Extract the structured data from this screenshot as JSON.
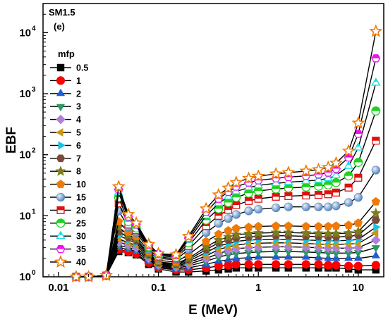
{
  "chart_data": {
    "type": "line",
    "xlabel": "E (MeV)",
    "ylabel": "EBF",
    "xscale": "log",
    "yscale": "log",
    "xlim": [
      0.007,
      18
    ],
    "ylim": [
      1,
      30000
    ],
    "xticks": [
      0.01,
      0.1,
      1,
      10
    ],
    "xtick_labels": [
      "0.01",
      "0.1",
      "1",
      "10"
    ],
    "yticks": [
      1,
      10,
      100,
      1000,
      10000
    ],
    "ytick_mantissa": "10",
    "ytick_exponents": [
      "0",
      "1",
      "2",
      "3",
      "4"
    ],
    "annotations": [
      "SM1.5",
      "(e)"
    ],
    "legend_title": "mfp",
    "legend_position": "left",
    "grid": false,
    "x": [
      0.015,
      0.02,
      0.03,
      0.04,
      0.05,
      0.06,
      0.08,
      0.1,
      0.15,
      0.2,
      0.3,
      0.4,
      0.5,
      0.6,
      0.8,
      1,
      1.5,
      2,
      3,
      4,
      5,
      6,
      8,
      10,
      15
    ],
    "series": [
      {
        "name": "0.5",
        "marker": "square",
        "color": "#000000",
        "values": [
          1.0,
          1.0,
          1.05,
          2.6,
          2.5,
          2.3,
          1.6,
          1.35,
          1.2,
          1.2,
          1.25,
          1.3,
          1.35,
          1.4,
          1.4,
          1.4,
          1.4,
          1.4,
          1.4,
          1.4,
          1.4,
          1.4,
          1.35,
          1.3,
          1.3
        ]
      },
      {
        "name": "1",
        "marker": "circle",
        "color": "#ff0000",
        "values": [
          1.0,
          1.0,
          1.05,
          2.8,
          2.6,
          2.4,
          1.7,
          1.4,
          1.3,
          1.3,
          1.4,
          1.5,
          1.55,
          1.6,
          1.6,
          1.6,
          1.6,
          1.6,
          1.6,
          1.6,
          1.55,
          1.55,
          1.5,
          1.5,
          1.55
        ]
      },
      {
        "name": "2",
        "marker": "triangle-up",
        "color": "#1f5fd6",
        "values": [
          1.0,
          1.0,
          1.05,
          3.0,
          2.8,
          2.6,
          1.8,
          1.45,
          1.35,
          1.4,
          1.6,
          1.8,
          1.9,
          2.0,
          2.05,
          2.1,
          2.1,
          2.1,
          2.1,
          2.05,
          2.0,
          2.0,
          2.0,
          2.0,
          2.2
        ]
      },
      {
        "name": "3",
        "marker": "triangle-down",
        "color": "#2a9a63",
        "values": [
          1.0,
          1.0,
          1.05,
          3.3,
          3.0,
          2.8,
          1.9,
          1.5,
          1.4,
          1.5,
          1.8,
          2.1,
          2.3,
          2.4,
          2.5,
          2.55,
          2.6,
          2.6,
          2.55,
          2.5,
          2.45,
          2.45,
          2.45,
          2.5,
          3.0
        ]
      },
      {
        "name": "4",
        "marker": "diamond",
        "color": "#b07fd8",
        "values": [
          1.0,
          1.0,
          1.05,
          3.7,
          3.3,
          3.0,
          2.0,
          1.55,
          1.45,
          1.6,
          2.0,
          2.4,
          2.7,
          2.9,
          3.0,
          3.05,
          3.1,
          3.1,
          3.05,
          3.0,
          2.95,
          2.95,
          2.95,
          3.0,
          4.0
        ]
      },
      {
        "name": "5",
        "marker": "triangle-left",
        "color": "#c89612",
        "values": [
          1.0,
          1.0,
          1.05,
          4.2,
          3.6,
          3.3,
          2.1,
          1.6,
          1.5,
          1.7,
          2.2,
          2.8,
          3.1,
          3.3,
          3.5,
          3.55,
          3.6,
          3.6,
          3.5,
          3.45,
          3.4,
          3.4,
          3.45,
          3.5,
          5.2
        ]
      },
      {
        "name": "6",
        "marker": "triangle-right",
        "color": "#19c2e0",
        "values": [
          1.0,
          1.0,
          1.05,
          4.8,
          4.0,
          3.6,
          2.2,
          1.65,
          1.55,
          1.8,
          2.5,
          3.2,
          3.5,
          3.8,
          4.0,
          4.05,
          4.1,
          4.1,
          4.0,
          3.95,
          3.9,
          3.9,
          3.95,
          4.1,
          6.5
        ]
      },
      {
        "name": "7",
        "marker": "hexagon",
        "color": "#7a4a3a",
        "values": [
          1.0,
          1.0,
          1.05,
          5.5,
          4.4,
          3.9,
          2.3,
          1.7,
          1.6,
          1.9,
          2.8,
          3.6,
          4.0,
          4.3,
          4.5,
          4.6,
          4.7,
          4.7,
          4.6,
          4.55,
          4.5,
          4.5,
          4.6,
          4.8,
          8.5
        ]
      },
      {
        "name": "8",
        "marker": "star",
        "color": "#7d7d1e",
        "values": [
          1.0,
          1.0,
          1.05,
          6.5,
          4.8,
          4.2,
          2.4,
          1.75,
          1.65,
          2.0,
          3.1,
          4.0,
          4.5,
          4.9,
          5.1,
          5.2,
          5.3,
          5.3,
          5.2,
          5.15,
          5.1,
          5.1,
          5.2,
          5.5,
          11.0
        ]
      },
      {
        "name": "10",
        "marker": "pentagon",
        "color": "#f07a05",
        "values": [
          1.0,
          1.0,
          1.05,
          8.0,
          5.4,
          4.6,
          2.6,
          1.85,
          1.75,
          2.3,
          3.8,
          5.0,
          5.7,
          6.2,
          6.5,
          6.7,
          6.8,
          6.8,
          6.7,
          6.7,
          6.7,
          6.8,
          7.0,
          7.6,
          17.0
        ]
      },
      {
        "name": "15",
        "marker": "sphere",
        "color": "#7ea8d8",
        "values": [
          1.0,
          1.0,
          1.05,
          12.0,
          6.5,
          5.3,
          2.8,
          2.0,
          1.9,
          2.8,
          5.3,
          7.5,
          9.0,
          10.5,
          12.0,
          12.8,
          13.5,
          14.0,
          14.0,
          14.0,
          14.0,
          14.5,
          16.5,
          20.0,
          56.0
        ]
      },
      {
        "name": "20",
        "marker": "square-half",
        "color": "#e01010",
        "values": [
          1.0,
          1.0,
          1.05,
          16.0,
          7.2,
          5.8,
          3.0,
          2.1,
          2.0,
          3.2,
          6.8,
          10.0,
          12.5,
          15.0,
          17.5,
          19.0,
          20.5,
          21.0,
          21.5,
          22.0,
          22.5,
          24.0,
          29.0,
          42.0,
          170.0
        ]
      },
      {
        "name": "25",
        "marker": "circle-half",
        "color": "#20d020",
        "values": [
          1.0,
          1.0,
          1.05,
          20.0,
          8.0,
          6.3,
          3.1,
          2.2,
          2.1,
          3.6,
          8.5,
          13.0,
          16.5,
          20.0,
          23.5,
          25.5,
          27.5,
          28.5,
          29.5,
          30.5,
          32.0,
          35.0,
          45.0,
          75.0,
          520.0
        ]
      },
      {
        "name": "30",
        "marker": "triangle-half",
        "color": "#18e0e0",
        "values": [
          1.0,
          1.0,
          1.05,
          24.0,
          9.0,
          6.8,
          3.2,
          2.3,
          2.2,
          4.0,
          10.0,
          16.0,
          20.5,
          25.0,
          29.0,
          31.5,
          34.0,
          35.5,
          37.0,
          38.5,
          41.0,
          46.0,
          65.0,
          130.0,
          1500.0
        ]
      },
      {
        "name": "35",
        "marker": "hexagon-half",
        "color": "#ee10ee",
        "values": [
          1.0,
          1.0,
          1.05,
          27.0,
          9.7,
          7.2,
          3.3,
          2.35,
          2.25,
          4.3,
          11.5,
          19.0,
          24.5,
          30.0,
          35.0,
          38.0,
          41.0,
          43.0,
          45.0,
          47.5,
          51.0,
          59.0,
          90.0,
          220.0,
          3800.0
        ]
      },
      {
        "name": "40",
        "marker": "star-open",
        "color": "#f07a05",
        "values": [
          1.0,
          1.0,
          1.05,
          30.0,
          10.5,
          7.6,
          3.4,
          2.4,
          2.3,
          4.6,
          13.0,
          22.0,
          28.5,
          35.0,
          41.0,
          44.5,
          48.5,
          51.0,
          54.0,
          57.0,
          62.0,
          73.0,
          115.0,
          330.0,
          10500.0
        ]
      }
    ]
  }
}
